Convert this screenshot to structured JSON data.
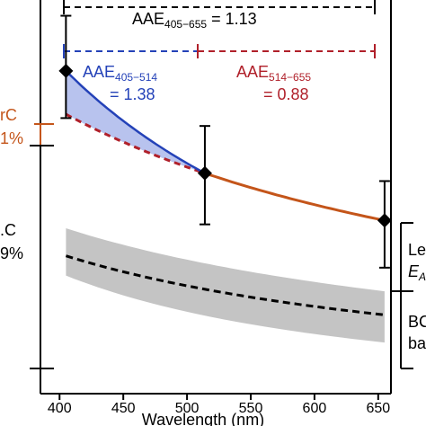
{
  "chart_data": {
    "type": "line",
    "xlabel": "Wavelength (nm)",
    "xlim": [
      385,
      660
    ],
    "ylim": [
      0,
      1
    ],
    "x_ticks": [
      400,
      450,
      500,
      550,
      600,
      650
    ],
    "grid": false,
    "measured_points": {
      "x": [
        405,
        514,
        655
      ],
      "y": [
        0.82,
        0.56,
        0.44
      ],
      "err_low": [
        0.7,
        0.43,
        0.32
      ],
      "err_high": [
        0.96,
        0.68,
        0.54
      ]
    },
    "series": [
      {
        "segment": "405-514",
        "x": [
          405,
          514
        ],
        "color": "#2442b8"
      },
      {
        "segment": "514-655",
        "x": [
          514,
          655
        ],
        "color": "#c4551a"
      },
      {
        "segment": "extrapolation-405-514",
        "x": [
          405,
          514
        ],
        "color": "#b0202a"
      },
      {
        "segment": "bc-baseline",
        "x": [
          405,
          655
        ],
        "y": [
          0.35,
          0.2
        ],
        "color": "#000000"
      }
    ],
    "bc_band": {
      "x": [
        405,
        655
      ],
      "low": [
        0.3,
        0.13
      ],
      "high": [
        0.42,
        0.26
      ],
      "color": "#c4c4c4"
    },
    "annotations": {
      "aae_full_label": "AAE",
      "aae_full_sub": "405−655",
      "aae_full_value": " = 1.13",
      "aae_blue_label": "AAE",
      "aae_blue_sub": "405−514",
      "aae_blue_value": "= 1.38",
      "aae_red_label": "AAE",
      "aae_red_sub": "514−655",
      "aae_red_value": "= 0.88",
      "left_brc_text": "rC",
      "left_brc_pct": "1%",
      "left_bc_text": ".C",
      "left_bc_pct": "9%",
      "right_len_text": "Le",
      "right_e_text": "E",
      "right_e_sub": "A",
      "right_bc_text": "BC",
      "right_ba_text": "ba"
    },
    "colors": {
      "blue": "#2442b8",
      "red": "#b0202a",
      "orange": "#c4551a",
      "grey_band": "#c4c4c4",
      "blue_fill": "#b8c3ee"
    }
  }
}
